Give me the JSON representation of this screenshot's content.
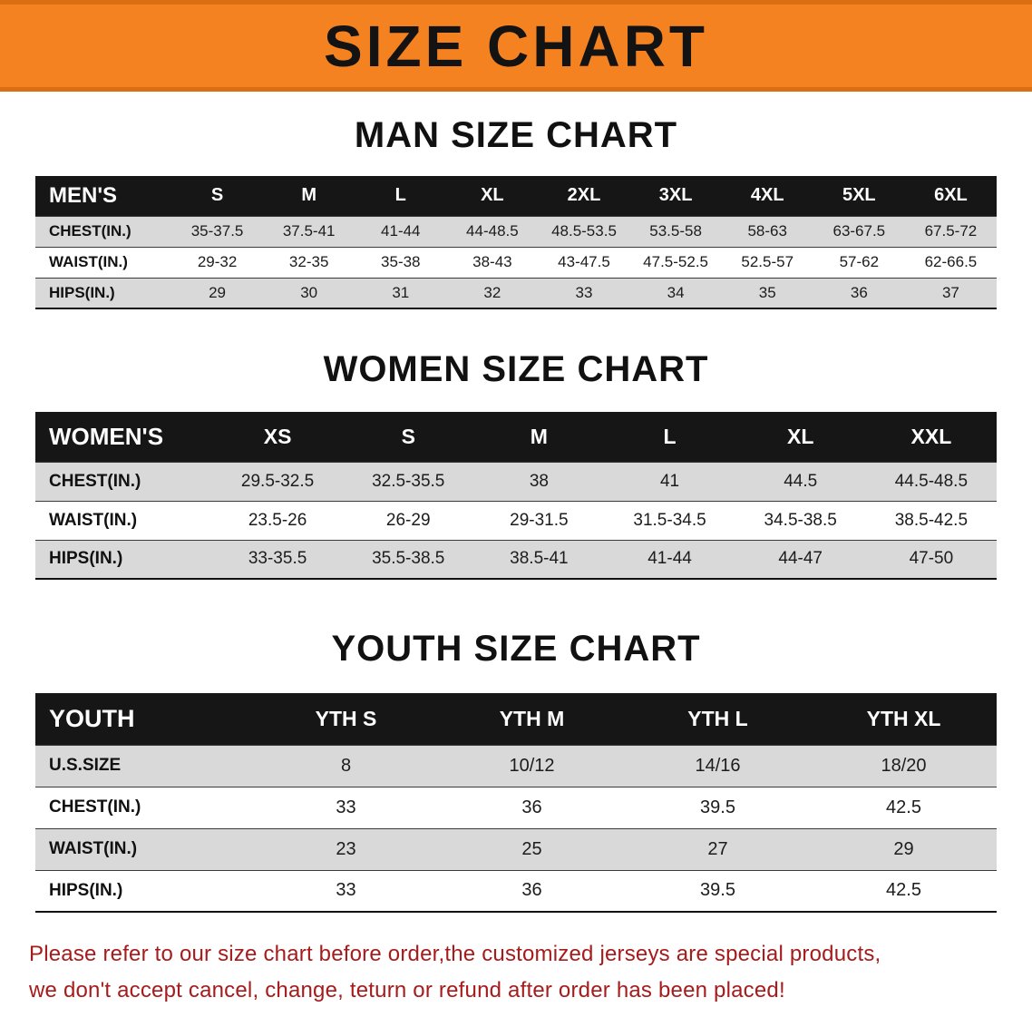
{
  "banner": {
    "title": "SIZE CHART"
  },
  "men": {
    "heading": "MAN SIZE CHART",
    "header": [
      "MEN'S",
      "S",
      "M",
      "L",
      "XL",
      "2XL",
      "3XL",
      "4XL",
      "5XL",
      "6XL"
    ],
    "rows": [
      [
        "CHEST(IN.)",
        "35-37.5",
        "37.5-41",
        "41-44",
        "44-48.5",
        "48.5-53.5",
        "53.5-58",
        "58-63",
        "63-67.5",
        "67.5-72"
      ],
      [
        "WAIST(IN.)",
        "29-32",
        "32-35",
        "35-38",
        "38-43",
        "43-47.5",
        "47.5-52.5",
        "52.5-57",
        "57-62",
        "62-66.5"
      ],
      [
        "HIPS(IN.)",
        "29",
        "30",
        "31",
        "32",
        "33",
        "34",
        "35",
        "36",
        "37"
      ]
    ]
  },
  "women": {
    "heading": "WOMEN SIZE CHART",
    "header": [
      "WOMEN'S",
      "XS",
      "S",
      "M",
      "L",
      "XL",
      "XXL"
    ],
    "rows": [
      [
        "CHEST(IN.)",
        "29.5-32.5",
        "32.5-35.5",
        "38",
        "41",
        "44.5",
        "44.5-48.5"
      ],
      [
        "WAIST(IN.)",
        "23.5-26",
        "26-29",
        "29-31.5",
        "31.5-34.5",
        "34.5-38.5",
        "38.5-42.5"
      ],
      [
        "HIPS(IN.)",
        "33-35.5",
        "35.5-38.5",
        "38.5-41",
        "41-44",
        "44-47",
        "47-50"
      ]
    ]
  },
  "youth": {
    "heading": "YOUTH SIZE CHART",
    "header": [
      "YOUTH",
      "YTH S",
      "YTH M",
      "YTH L",
      "YTH XL"
    ],
    "rows": [
      [
        "U.S.SIZE",
        "8",
        "10/12",
        "14/16",
        "18/20"
      ],
      [
        "CHEST(IN.)",
        "33",
        "36",
        "39.5",
        "42.5"
      ],
      [
        "WAIST(IN.)",
        "23",
        "25",
        "27",
        "29"
      ],
      [
        "HIPS(IN.)",
        "33",
        "36",
        "39.5",
        "42.5"
      ]
    ]
  },
  "disclaimer": {
    "line1": "Please refer to our size chart before order,the customized jerseys are special products,",
    "line2": "we don't accept cancel, change, teturn or refund after order has been placed!"
  },
  "colors": {
    "banner_bg": "#f58220",
    "banner_edge": "#d96f12",
    "table_header_bg": "#161616",
    "table_header_text": "#ffffff",
    "row_alt_bg": "#d9d9d9",
    "heading_text": "#111111",
    "disclaimer_text": "#a61b1b"
  }
}
